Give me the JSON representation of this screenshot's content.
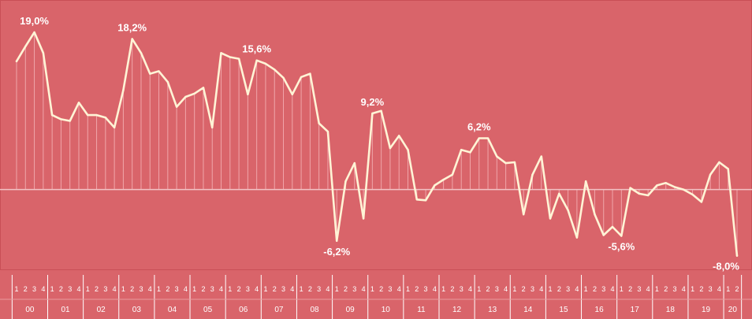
{
  "chart_data": {
    "type": "line",
    "title": "",
    "xlabel": "",
    "ylabel": "",
    "ylim": [
      -8.5,
      21
    ],
    "grid": false,
    "legend": "none",
    "colors": {
      "background": "#d9646a",
      "line": "#fff4d6",
      "zero_line": "#f2c2c4",
      "drop_lines": "#f0a6aa"
    },
    "years": [
      "00",
      "01",
      "02",
      "03",
      "04",
      "05",
      "06",
      "07",
      "08",
      "09",
      "10",
      "11",
      "12",
      "13",
      "14",
      "15",
      "16",
      "17",
      "18",
      "19",
      "20"
    ],
    "quarter_labels": [
      "1",
      "2",
      "3",
      "4"
    ],
    "last_year_quarters": 2,
    "x": [
      "00-1",
      "00-2",
      "00-3",
      "00-4",
      "01-1",
      "01-2",
      "01-3",
      "01-4",
      "02-1",
      "02-2",
      "02-3",
      "02-4",
      "03-1",
      "03-2",
      "03-3",
      "03-4",
      "04-1",
      "04-2",
      "04-3",
      "04-4",
      "05-1",
      "05-2",
      "05-3",
      "05-4",
      "06-1",
      "06-2",
      "06-3",
      "06-4",
      "07-1",
      "07-2",
      "07-3",
      "07-4",
      "08-1",
      "08-2",
      "08-3",
      "08-4",
      "09-1",
      "09-2",
      "09-3",
      "09-4",
      "10-1",
      "10-2",
      "10-3",
      "10-4",
      "11-1",
      "11-2",
      "11-3",
      "11-4",
      "12-1",
      "12-2",
      "12-3",
      "12-4",
      "13-1",
      "13-2",
      "13-3",
      "13-4",
      "14-1",
      "14-2",
      "14-3",
      "14-4",
      "15-1",
      "15-2",
      "15-3",
      "15-4",
      "16-1",
      "16-2",
      "16-3",
      "16-4",
      "17-1",
      "17-2",
      "17-3",
      "17-4",
      "18-1",
      "18-2",
      "18-3",
      "18-4",
      "19-1",
      "19-2",
      "19-3",
      "19-4",
      "20-1",
      "20-2"
    ],
    "series": [
      {
        "values": [
          15.5,
          17.3,
          19.0,
          16.5,
          9.0,
          8.5,
          8.3,
          10.5,
          9.0,
          9.0,
          8.7,
          7.5,
          12.0,
          18.2,
          16.5,
          14.0,
          14.3,
          13.0,
          10.0,
          11.2,
          11.6,
          12.3,
          7.5,
          16.5,
          16.0,
          15.8,
          11.5,
          15.6,
          15.2,
          14.5,
          13.5,
          11.5,
          13.6,
          14.0,
          8.0,
          7.0,
          -6.2,
          1.0,
          3.2,
          -3.5,
          9.2,
          9.5,
          5.0,
          6.5,
          4.8,
          -1.2,
          -1.3,
          0.5,
          1.2,
          1.8,
          4.8,
          4.5,
          6.2,
          6.2,
          4.0,
          3.2,
          3.3,
          -3.0,
          1.8,
          4.0,
          -3.5,
          -0.5,
          -2.5,
          -5.8,
          1.0,
          -3.0,
          -5.5,
          -4.5,
          -5.6,
          0.2,
          -0.5,
          -0.7,
          0.5,
          0.8,
          0.3,
          0.0,
          -0.6,
          -1.5,
          1.8,
          3.3,
          2.5,
          -8.0
        ]
      }
    ],
    "annotations": [
      {
        "index": 2,
        "text": "19,0%"
      },
      {
        "index": 13,
        "text": "18,2%"
      },
      {
        "index": 27,
        "text": "15,6%"
      },
      {
        "index": 36,
        "text": "-6,2%"
      },
      {
        "index": 40,
        "text": "9,2%"
      },
      {
        "index": 52,
        "text": "6,2%"
      },
      {
        "index": 68,
        "text": "-5,6%"
      },
      {
        "index": 81,
        "text": "-8,0%"
      }
    ]
  }
}
